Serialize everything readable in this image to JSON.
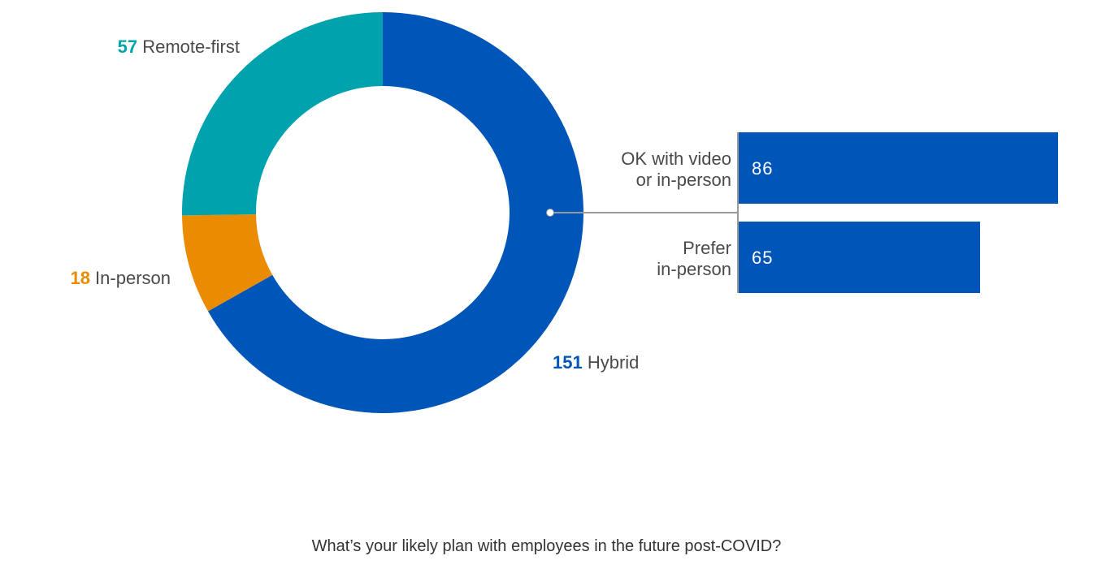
{
  "caption": "What’s your likely plan with employees in the future post-COVID?",
  "chart_data": [
    {
      "type": "pie",
      "donut": true,
      "slices": [
        {
          "label": "Hybrid",
          "value": 151,
          "color": "#0056b8"
        },
        {
          "label": "In-person",
          "value": 18,
          "color": "#eb8c00"
        },
        {
          "label": "Remote-first",
          "value": 57,
          "color": "#00a3ad"
        }
      ]
    },
    {
      "type": "bar",
      "orientation": "horizontal",
      "categories": [
        [
          "OK with video",
          "or in-person"
        ],
        [
          "Prefer",
          "in-person"
        ]
      ],
      "values": [
        86,
        65
      ],
      "color": "#0056b8",
      "breakdown_of": "Hybrid"
    }
  ],
  "colors": {
    "label_text": "#4a4a4a",
    "connector": "#999999"
  }
}
